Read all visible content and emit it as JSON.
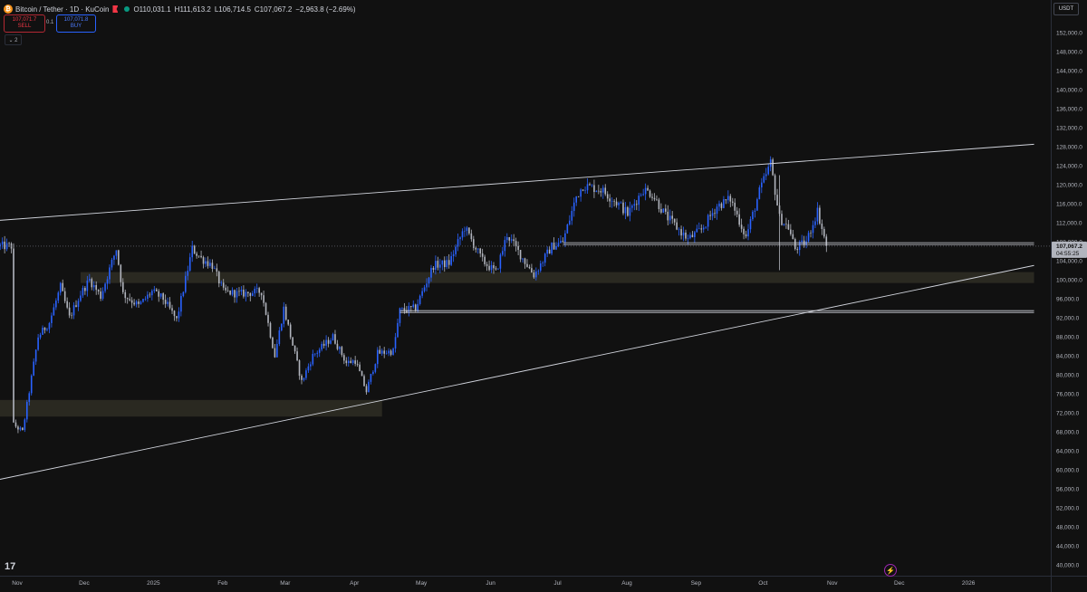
{
  "header": {
    "coin_symbol": "₿",
    "symbol": "Bitcoin / Tether · 1D · KuCoin",
    "open": "O110,031.1",
    "high": "H111,613.2",
    "low": "L106,714.5",
    "close": "C107,067.2",
    "change": "−2,963.8 (−2.69%)"
  },
  "trade": {
    "sell_price": "107,071.7",
    "sell_label": "SELL",
    "spread": "0.1",
    "buy_price": "107,071.8",
    "buy_label": "BUY"
  },
  "indicators_toggle": "⌄ 2",
  "currency": "USDT",
  "price_label": {
    "price": "107,067.2",
    "countdown": "04:55:25"
  },
  "tv_logo": "17",
  "bolt_icon": "⚡",
  "colors": {
    "up": "#2962ff",
    "down": "#b2b5be",
    "bg": "#111111",
    "zone": "#2f2e25"
  },
  "chart_data": {
    "type": "candlestick",
    "y_axis_labels": [
      "152,000.0",
      "148,000.0",
      "144,000.0",
      "140,000.0",
      "136,000.0",
      "132,000.0",
      "128,000.0",
      "124,000.0",
      "120,000.0",
      "116,000.0",
      "112,000.0",
      "108,000.0",
      "104,000.0",
      "100,000.0",
      "96,000.0",
      "92,000.0",
      "88,000.0",
      "84,000.0",
      "80,000.0",
      "76,000.0",
      "72,000.0",
      "68,000.0",
      "64,000.0",
      "60,000.0",
      "56,000.0",
      "52,000.0",
      "48,000.0",
      "44,000.0",
      "40,000.0"
    ],
    "x_axis_labels": [
      "Nov",
      "Dec",
      "2025",
      "Feb",
      "Mar",
      "Apr",
      "May",
      "Jun",
      "Jul",
      "Aug",
      "Sep",
      "Oct",
      "Nov",
      "Dec",
      "2026"
    ],
    "ylim": [
      38000,
      155000
    ],
    "close_path": [
      [
        "2024-11-01",
        69500
      ],
      [
        "2024-11-05",
        68000
      ],
      [
        "2024-11-08",
        76500
      ],
      [
        "2024-11-12",
        88000
      ],
      [
        "2024-11-17",
        91000
      ],
      [
        "2024-11-22",
        98500
      ],
      [
        "2024-11-26",
        92000
      ],
      [
        "2024-12-01",
        97000
      ],
      [
        "2024-12-05",
        100000
      ],
      [
        "2024-12-10",
        96500
      ],
      [
        "2024-12-17",
        106500
      ],
      [
        "2024-12-20",
        97000
      ],
      [
        "2024-12-27",
        94500
      ],
      [
        "2025-01-02",
        97500
      ],
      [
        "2025-01-07",
        96000
      ],
      [
        "2025-01-13",
        91500
      ],
      [
        "2025-01-20",
        106500
      ],
      [
        "2025-01-24",
        104500
      ],
      [
        "2025-01-29",
        103000
      ],
      [
        "2025-02-03",
        97500
      ],
      [
        "2025-02-10",
        97000
      ],
      [
        "2025-02-20",
        97500
      ],
      [
        "2025-02-26",
        84000
      ],
      [
        "2025-03-02",
        94000
      ],
      [
        "2025-03-10",
        78500
      ],
      [
        "2025-03-15",
        84000
      ],
      [
        "2025-03-24",
        88000
      ],
      [
        "2025-03-30",
        82500
      ],
      [
        "2025-04-03",
        83000
      ],
      [
        "2025-04-08",
        76500
      ],
      [
        "2025-04-13",
        84500
      ],
      [
        "2025-04-20",
        85000
      ],
      [
        "2025-04-23",
        93500
      ],
      [
        "2025-04-30",
        94000
      ],
      [
        "2025-05-08",
        103000
      ],
      [
        "2025-05-15",
        103500
      ],
      [
        "2025-05-22",
        111000
      ],
      [
        "2025-05-30",
        104000
      ],
      [
        "2025-06-05",
        101500
      ],
      [
        "2025-06-10",
        109500
      ],
      [
        "2025-06-17",
        104500
      ],
      [
        "2025-06-22",
        101000
      ],
      [
        "2025-06-30",
        107000
      ],
      [
        "2025-07-05",
        108000
      ],
      [
        "2025-07-11",
        117500
      ],
      [
        "2025-07-14",
        119800
      ],
      [
        "2025-07-22",
        119000
      ],
      [
        "2025-07-31",
        115500
      ],
      [
        "2025-08-03",
        113800
      ],
      [
        "2025-08-10",
        119000
      ],
      [
        "2025-08-14",
        118000
      ],
      [
        "2025-08-20",
        113500
      ],
      [
        "2025-08-30",
        108500
      ],
      [
        "2025-09-05",
        110500
      ],
      [
        "2025-09-12",
        115500
      ],
      [
        "2025-09-18",
        117000
      ],
      [
        "2025-09-25",
        109000
      ],
      [
        "2025-10-01",
        118500
      ],
      [
        "2025-10-06",
        124500
      ],
      [
        "2025-10-10",
        113000
      ],
      [
        "2025-10-14",
        111000
      ],
      [
        "2025-10-17",
        106500
      ],
      [
        "2025-10-22",
        108000
      ],
      [
        "2025-10-27",
        114500
      ],
      [
        "2025-10-31",
        107067
      ]
    ],
    "trendlines": [
      {
        "from": [
          "2024-10-20",
          112500
        ],
        "to": [
          "2026-02-01",
          128500
        ]
      },
      {
        "from": [
          "2024-10-20",
          58000
        ],
        "to": [
          "2026-02-01",
          103000
        ]
      }
    ],
    "horizontal_lines": [
      {
        "from": "2025-07-05",
        "to": "2026-02-01",
        "price": 107600
      },
      {
        "from": "2025-04-23",
        "to": "2026-02-01",
        "price": 93300
      }
    ],
    "zones": [
      {
        "from": "2024-12-01",
        "to": "2026-02-01",
        "low": 99300,
        "high": 101600
      },
      {
        "from": "2024-10-20",
        "to": "2025-04-15",
        "low": 71200,
        "high": 74700
      }
    ],
    "current_price": 107067.2
  }
}
